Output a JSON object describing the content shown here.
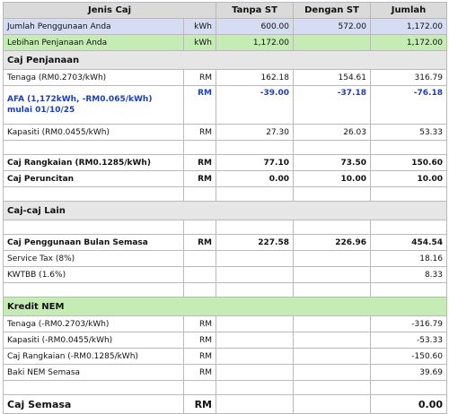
{
  "header": {
    "jenis_caj": "Jenis Caj",
    "tanpa_st": "Tanpa ST",
    "dengan_st": "Dengan ST",
    "jumlah": "Jumlah"
  },
  "usage": {
    "label": "Jumlah Penggunaan Anda",
    "unit": "kWh",
    "tanpa_st": "600.00",
    "dengan_st": "572.00",
    "jumlah": "1,172.00"
  },
  "excess": {
    "label": "Lebihan Penjanaan Anda",
    "unit": "kWh",
    "tanpa_st": "1,172.00",
    "jumlah": "1,172.00"
  },
  "caj_penjanaan": {
    "title": "Caj Penjanaan",
    "tenaga": {
      "label": "Tenaga (RM0.2703/kWh)",
      "unit": "RM",
      "tanpa_st": "162.18",
      "dengan_st": "154.61",
      "jumlah": "316.79"
    },
    "afa": {
      "label": "AFA (1,172kWh, -RM0.065/kWh) mulai 01/10/25",
      "unit": "RM",
      "tanpa_st": "-39.00",
      "dengan_st": "-37.18",
      "jumlah": "-76.18"
    },
    "kapasiti": {
      "label": "Kapasiti (RM0.0455/kWh)",
      "unit": "RM",
      "tanpa_st": "27.30",
      "dengan_st": "26.03",
      "jumlah": "53.33"
    }
  },
  "caj_rangkaian": {
    "label": "Caj Rangkaian (RM0.1285/kWh)",
    "unit": "RM",
    "tanpa_st": "77.10",
    "dengan_st": "73.50",
    "jumlah": "150.60"
  },
  "caj_peruncitan": {
    "label": "Caj Peruncitan",
    "unit": "RM",
    "tanpa_st": "0.00",
    "dengan_st": "10.00",
    "jumlah": "10.00"
  },
  "caj_lain": {
    "title": "Caj-caj Lain",
    "bulan_semasa": {
      "label": "Caj Penggunaan Bulan Semasa",
      "unit": "RM",
      "tanpa_st": "227.58",
      "dengan_st": "226.96",
      "jumlah": "454.54"
    },
    "service_tax": {
      "label": "Service Tax (8%)",
      "jumlah": "18.16"
    },
    "kwtbb": {
      "label": "KWTBB (1.6%)",
      "jumlah": "8.33"
    }
  },
  "kredit_nem": {
    "title": "Kredit NEM",
    "tenaga": {
      "label": "Tenaga (-RM0.2703/kWh)",
      "unit": "RM",
      "jumlah": "-316.79"
    },
    "kapasiti": {
      "label": "Kapasiti (-RM0.0455/kWh)",
      "unit": "RM",
      "jumlah": "-53.33"
    },
    "rangkaian": {
      "label": "Caj Rangkaian (-RM0.1285/kWh)",
      "unit": "RM",
      "jumlah": "-150.60"
    },
    "baki": {
      "label": "Baki NEM Semasa",
      "unit": "RM",
      "jumlah": "39.69"
    }
  },
  "caj_semasa": {
    "label": "Caj Semasa",
    "unit": "RM",
    "jumlah": "0.00"
  },
  "colors": {
    "header_bg": "#dadada",
    "usage_bg": "#d6dcf1",
    "excess_bg": "#c4ecb4",
    "section_bg": "#e6e6e6",
    "afa_text": "#1d3fb5"
  }
}
